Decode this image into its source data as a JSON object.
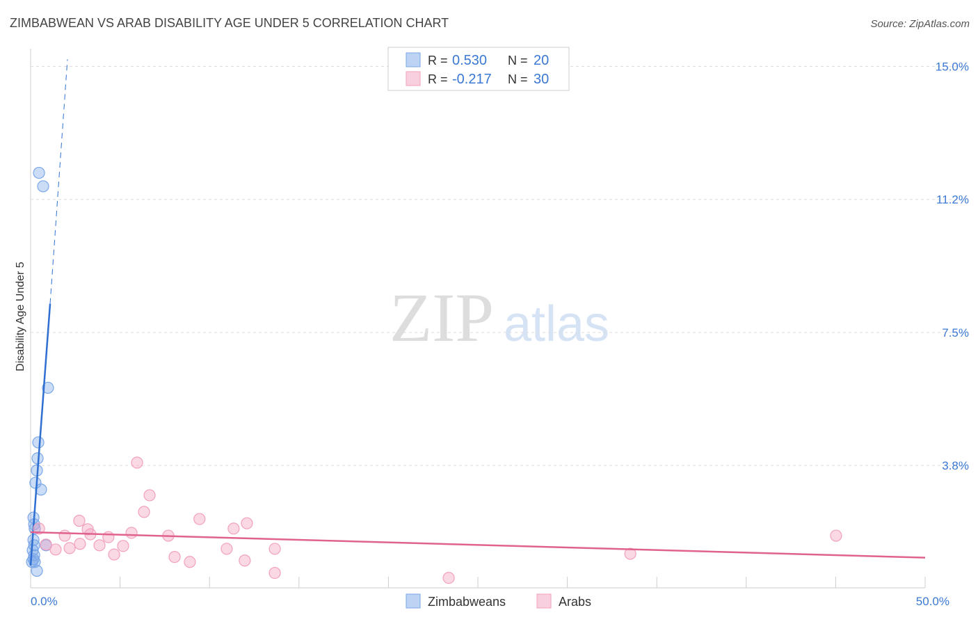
{
  "chart_data": {
    "type": "scatter",
    "title": "ZIMBABWEAN VS ARAB DISABILITY AGE UNDER 5 CORRELATION CHART",
    "source": "Source: ZipAtlas.com",
    "y_label": "Disability Age Under 5",
    "watermark": [
      "ZIP",
      "atlas"
    ],
    "stat_labels": {
      "r": "R =",
      "n": "N ="
    },
    "xlim": [
      0,
      50
    ],
    "ylim": [
      0.3,
      15.5
    ],
    "xticks": [
      {
        "value": 0,
        "label": "0.0%"
      },
      {
        "value": 50,
        "label": "50.0%"
      }
    ],
    "xminor_ticks": [
      5,
      10,
      15,
      20,
      25,
      30,
      35,
      40,
      45
    ],
    "yticks": [
      {
        "value": 3.75,
        "label": "3.8%"
      },
      {
        "value": 7.5,
        "label": "7.5%"
      },
      {
        "value": 11.25,
        "label": "11.2%"
      },
      {
        "value": 15,
        "label": "15.0%"
      }
    ],
    "grid": true,
    "series": [
      {
        "name": "Zimbabweans",
        "color": "#7aa7e8",
        "line_color": "#2f6fd1",
        "r": {
          "value": 0.53,
          "label": "0.530"
        },
        "n": 20,
        "x": [
          0.47,
          0.7,
          0.97,
          0.43,
          0.39,
          0.35,
          0.27,
          0.58,
          0.16,
          0.2,
          0.23,
          0.16,
          0.2,
          0.86,
          0.12,
          0.2,
          0.16,
          0.23,
          0.35,
          0.08
        ],
        "values": [
          12.0,
          11.62,
          5.94,
          4.4,
          3.95,
          3.61,
          3.26,
          3.07,
          2.28,
          2.09,
          1.97,
          1.65,
          1.5,
          1.5,
          1.36,
          1.22,
          1.11,
          1.03,
          0.78,
          1.03
        ],
        "trend_x": [
          0,
          1.09
        ],
        "trend_y": [
          0.93,
          8.31
        ],
        "trend_dash_x": [
          1.09,
          2.06
        ],
        "trend_dash_y": [
          8.31,
          15.2
        ]
      },
      {
        "name": "Arabs",
        "color": "#f2a0bd",
        "line_color": "#e0628f",
        "r": {
          "value": -0.217,
          "label": "-0.217"
        },
        "n": 30,
        "x": [
          5.95,
          6.65,
          6.34,
          2.72,
          9.44,
          12.09,
          3.19,
          11.35,
          5.64,
          7.7,
          1.91,
          3.34,
          4.35,
          2.76,
          3.85,
          5.17,
          0.86,
          0.47,
          2.18,
          1.4,
          10.96,
          13.65,
          4.67,
          8.05,
          8.9,
          11.97,
          13.65,
          23.37,
          33.52,
          45.02
        ],
        "values": [
          3.83,
          2.91,
          2.44,
          2.19,
          2.24,
          2.12,
          1.95,
          1.97,
          1.85,
          1.77,
          1.77,
          1.81,
          1.73,
          1.54,
          1.5,
          1.48,
          1.52,
          1.97,
          1.42,
          1.38,
          1.4,
          1.4,
          1.24,
          1.17,
          1.03,
          1.07,
          0.72,
          0.58,
          1.26,
          1.77
        ],
        "trend_x": [
          0,
          50
        ],
        "trend_y": [
          1.87,
          1.15
        ]
      }
    ]
  }
}
